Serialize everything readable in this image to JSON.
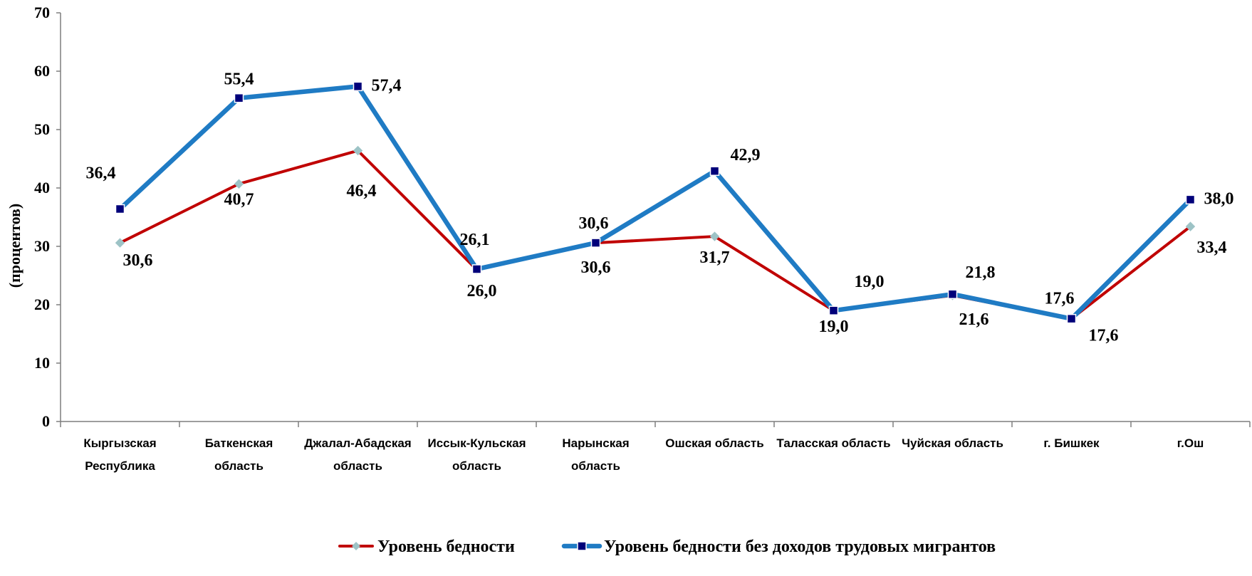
{
  "chart_data": {
    "type": "line",
    "ylabel": "(процентов)",
    "ylim": [
      0,
      70
    ],
    "yticks": [
      "0",
      "10",
      "20",
      "30",
      "40",
      "50",
      "60",
      "70"
    ],
    "grid": false,
    "legend_position": "bottom",
    "categories": [
      [
        "Кыргызская",
        "Республика"
      ],
      [
        "Баткенская",
        "область"
      ],
      [
        "Джалал-Абадская",
        "область"
      ],
      [
        "Иссык-Кульская",
        "область"
      ],
      [
        "Нарынская",
        "область"
      ],
      [
        "Ошская область"
      ],
      [
        "Таласская область"
      ],
      [
        "Чуйская область"
      ],
      [
        "г. Бишкек"
      ],
      [
        "г.Ош"
      ]
    ],
    "series": [
      {
        "name": "Уровень бедности",
        "color": "#c00000",
        "marker_color": "#9dc3c6",
        "marker": "diamond",
        "values": [
          30.6,
          40.7,
          46.4,
          26.0,
          30.6,
          31.7,
          19.0,
          21.6,
          17.6,
          33.4
        ],
        "labels": [
          "30,6",
          "40,7",
          "46,4",
          "26,0",
          "30,6",
          "31,7",
          "19,0",
          "21,6",
          "17,6",
          "33,4"
        ]
      },
      {
        "name": "Уровень бедности без доходов трудовых мигрантов",
        "color": "#1f7bc4",
        "marker_color": "#00007a",
        "marker": "square",
        "values": [
          36.4,
          55.4,
          57.4,
          26.1,
          30.6,
          42.9,
          19.0,
          21.8,
          17.6,
          38.0
        ],
        "labels": [
          "36,4",
          "55,4",
          "57,4",
          "26,1",
          "30,6",
          "42,9",
          "19,0",
          "21,8",
          "17,6",
          "38,0"
        ]
      }
    ]
  }
}
